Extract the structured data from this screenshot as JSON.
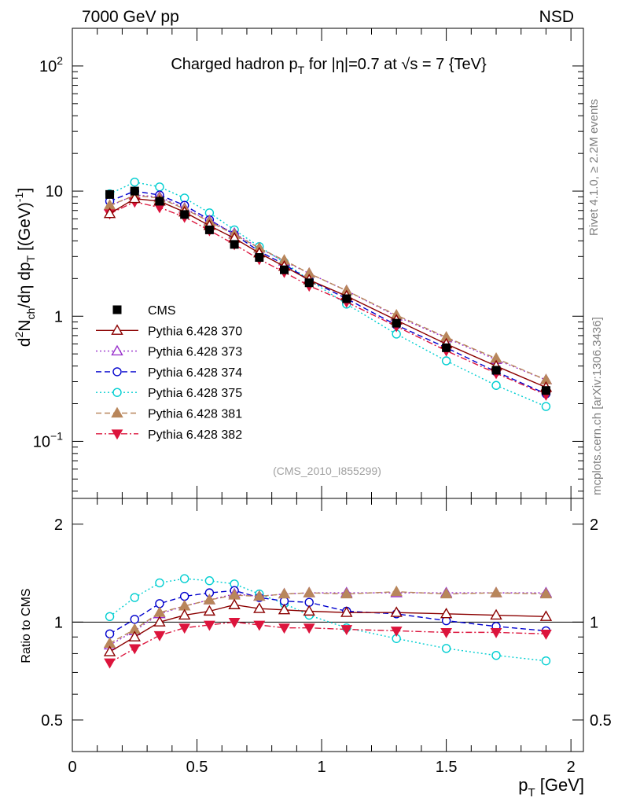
{
  "header": {
    "left": "7000 GeV pp",
    "right": "NSD"
  },
  "side_labels": {
    "rivet": "Rivet 4.1.0, ≥ 2.2M events",
    "mcplots": "mcplots.cern.ch [arXiv:1306.3436]"
  },
  "colors": {
    "data": "#000000",
    "s370": "#8b0000",
    "s373": "#9932cc",
    "s374": "#0000cd",
    "s375": "#00ced1",
    "s381": "#b8865b",
    "s382": "#dc143c"
  },
  "chart_data": [
    {
      "type": "line",
      "panel": "main",
      "title": "Charged hadron p_T for |η|=0.7 at √s = 7 {TeV}",
      "title_parts": {
        "a": "Charged hadron p",
        "sub": "T",
        "b": " for |η|=0.7 at √s = 7 {TeV}"
      },
      "ylabel": "d²N_ch/dη dp_T [(GeV)⁻¹]",
      "ylabel_parts": {
        "d": "d",
        "sup2": "2",
        "n": "N",
        "ch": "ch",
        "deta": "/dη  dp",
        "t": "T",
        "unit": " [(GeV)",
        "sup": "-1",
        "close": "]"
      },
      "xlim": [
        0,
        2.05
      ],
      "ylim": [
        0.035,
        200
      ],
      "yscale": "log",
      "yticks": [
        0.1,
        1,
        10,
        100
      ],
      "ytick_labels": [
        {
          "base": "10",
          "exp": "−1"
        },
        {
          "base": "1",
          "exp": ""
        },
        {
          "base": "10",
          "exp": ""
        },
        {
          "base": "10",
          "exp": "2"
        }
      ],
      "watermark": "(CMS_2010_I855299)",
      "x": [
        0.15,
        0.25,
        0.35,
        0.45,
        0.55,
        0.65,
        0.75,
        0.85,
        0.95,
        1.1,
        1.3,
        1.5,
        1.7,
        1.9
      ],
      "series": [
        {
          "key": "data",
          "name": "CMS",
          "marker": "square",
          "line": "none",
          "values": [
            9.4,
            10.0,
            8.3,
            6.5,
            4.9,
            3.75,
            2.95,
            2.35,
            1.85,
            1.38,
            0.88,
            0.56,
            0.37,
            0.255
          ]
        },
        {
          "key": "s370",
          "name": "Pythia 6.428 370",
          "marker": "triangle-open",
          "line": "solid",
          "values": [
            6.6,
            8.7,
            8.3,
            6.8,
            5.3,
            4.2,
            3.2,
            2.5,
            1.95,
            1.45,
            0.93,
            0.6,
            0.4,
            0.27
          ]
        },
        {
          "key": "s373",
          "name": "Pythia 6.428 373",
          "marker": "triangle-open",
          "line": "dotted",
          "values": [
            7.6,
            9.3,
            9.0,
            7.3,
            5.8,
            4.6,
            3.5,
            2.75,
            2.2,
            1.6,
            1.0,
            0.67,
            0.45,
            0.31
          ]
        },
        {
          "key": "s374",
          "name": "Pythia 6.428 374",
          "marker": "circle-open",
          "line": "dashed",
          "values": [
            8.3,
            10.0,
            9.3,
            7.7,
            5.9,
            4.5,
            3.3,
            2.6,
            1.95,
            1.38,
            0.85,
            0.56,
            0.36,
            0.24
          ]
        },
        {
          "key": "s375",
          "name": "Pythia 6.428 375",
          "marker": "circle-open",
          "line": "dotted",
          "values": [
            9.5,
            11.8,
            10.8,
            8.8,
            6.7,
            4.9,
            3.6,
            2.7,
            1.95,
            1.25,
            0.72,
            0.44,
            0.28,
            0.19
          ]
        },
        {
          "key": "s381",
          "name": "Pythia 6.428 381",
          "marker": "triangle-up",
          "line": "dashed",
          "values": [
            7.7,
            9.2,
            8.8,
            7.2,
            5.7,
            4.5,
            3.5,
            2.8,
            2.2,
            1.6,
            1.02,
            0.68,
            0.46,
            0.31
          ]
        },
        {
          "key": "s382",
          "name": "Pythia 6.428 382",
          "marker": "triangle-down",
          "line": "dashdot",
          "values": [
            6.6,
            8.2,
            7.4,
            6.2,
            4.85,
            3.75,
            2.85,
            2.25,
            1.75,
            1.3,
            0.83,
            0.53,
            0.35,
            0.235
          ]
        }
      ]
    },
    {
      "type": "line",
      "panel": "ratio",
      "ylabel": "Ratio to CMS",
      "xlabel": "p_T [GeV]",
      "xlabel_parts": {
        "p": "p",
        "t": "T",
        "unit": " [GeV]"
      },
      "xlim": [
        0,
        2.05
      ],
      "ylim": [
        0.4,
        2.4
      ],
      "yscale": "log",
      "yticks": [
        0.5,
        1,
        2
      ],
      "ytick_labels": [
        "0.5",
        "1",
        "2"
      ],
      "xticks": [
        0,
        0.5,
        1,
        1.5,
        2
      ],
      "xtick_labels": [
        "0",
        "0.5",
        "1",
        "1.5",
        "2"
      ],
      "x": [
        0.15,
        0.25,
        0.35,
        0.45,
        0.55,
        0.65,
        0.75,
        0.85,
        0.95,
        1.1,
        1.3,
        1.5,
        1.7,
        1.9
      ],
      "series": [
        {
          "key": "s370",
          "name": "Pythia 6.428 370",
          "values": [
            0.81,
            0.9,
            1.0,
            1.05,
            1.08,
            1.13,
            1.1,
            1.09,
            1.08,
            1.07,
            1.07,
            1.06,
            1.05,
            1.04
          ]
        },
        {
          "key": "s373",
          "name": "Pythia 6.428 373",
          "values": [
            0.85,
            0.94,
            1.06,
            1.12,
            1.17,
            1.22,
            1.2,
            1.22,
            1.23,
            1.23,
            1.23,
            1.23,
            1.23,
            1.23
          ]
        },
        {
          "key": "s374",
          "name": "Pythia 6.428 374",
          "values": [
            0.92,
            1.02,
            1.14,
            1.2,
            1.23,
            1.25,
            1.19,
            1.16,
            1.15,
            1.08,
            1.06,
            1.01,
            0.97,
            0.94
          ]
        },
        {
          "key": "s375",
          "name": "Pythia 6.428 375",
          "values": [
            1.04,
            1.19,
            1.32,
            1.36,
            1.34,
            1.31,
            1.22,
            1.14,
            1.05,
            0.96,
            0.89,
            0.83,
            0.79,
            0.76
          ]
        },
        {
          "key": "s381",
          "name": "Pythia 6.428 381",
          "values": [
            0.86,
            0.95,
            1.07,
            1.12,
            1.17,
            1.21,
            1.2,
            1.22,
            1.23,
            1.22,
            1.24,
            1.22,
            1.23,
            1.22
          ]
        },
        {
          "key": "s382",
          "name": "Pythia 6.428 382",
          "values": [
            0.75,
            0.83,
            0.91,
            0.96,
            0.98,
            1.0,
            0.98,
            0.96,
            0.96,
            0.95,
            0.94,
            0.93,
            0.93,
            0.92
          ]
        }
      ]
    }
  ]
}
